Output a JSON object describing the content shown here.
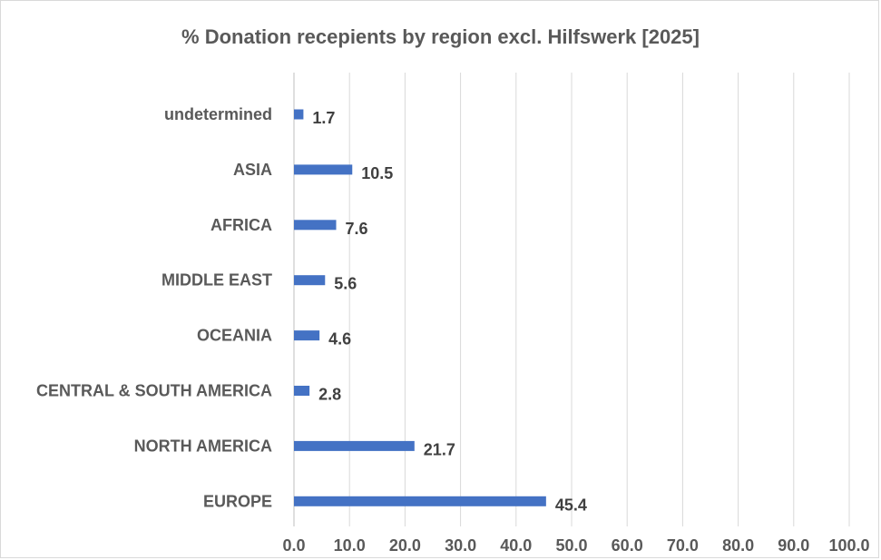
{
  "chart_data": {
    "type": "bar",
    "orientation": "horizontal",
    "title": "% Donation recepients by region excl. Hilfswerk [2025]",
    "categories": [
      "undetermined",
      "ASIA",
      "AFRICA",
      "MIDDLE EAST",
      "OCEANIA",
      "CENTRAL & SOUTH AMERICA",
      "NORTH AMERICA",
      "EUROPE"
    ],
    "values": [
      1.7,
      10.5,
      7.6,
      5.6,
      4.6,
      2.8,
      21.7,
      45.4
    ],
    "value_labels": [
      "1.7",
      "10.5",
      "7.6",
      "5.6",
      "4.6",
      "2.8",
      "21.7",
      "45.4"
    ],
    "xlim": [
      0,
      100
    ],
    "xticks": [
      0,
      10,
      20,
      30,
      40,
      50,
      60,
      70,
      80,
      90,
      100
    ],
    "xtick_labels": [
      "0.0",
      "10.0",
      "20.0",
      "30.0",
      "40.0",
      "50.0",
      "60.0",
      "70.0",
      "80.0",
      "90.0",
      "100.0"
    ],
    "grid": "vertical",
    "bar_color": "#4472c4",
    "gridline_color": "#d9d9d9",
    "legend": "none"
  }
}
